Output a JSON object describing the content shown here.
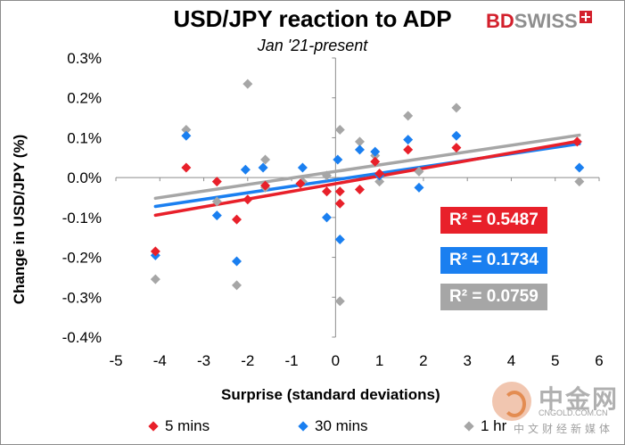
{
  "header": {
    "title": "USD/JPY reaction to ADP",
    "subtitle": "Jan '21-present",
    "logo_part1": "BD",
    "logo_part2": "SWISS"
  },
  "watermark": {
    "main": "中金网",
    "url": "CNGOLD.COM.CN",
    "tagline": "中文财经新媒体"
  },
  "r2_labels": [
    {
      "text": "R² = 0.5487",
      "color": "#e8202a"
    },
    {
      "text": "R² = 0.1734",
      "color": "#1a7ff0"
    },
    {
      "text": "R² = 0.0759",
      "color": "#a6a6a6"
    }
  ],
  "chart_data": {
    "type": "scatter",
    "title": "USD/JPY reaction to ADP",
    "subtitle": "Jan '21-present",
    "xlabel": "Surprise (standard deviations)",
    "ylabel": "Change in USD/JPY  (%)",
    "xlim": [
      -5,
      6
    ],
    "ylim": [
      -0.4,
      0.3
    ],
    "xticks": [
      -5,
      -4,
      -3,
      -2,
      -1,
      0,
      1,
      2,
      3,
      4,
      5,
      6
    ],
    "yticks": [
      0.3,
      0.2,
      0.1,
      0.0,
      -0.1,
      -0.2,
      -0.3,
      -0.4
    ],
    "ytick_labels": [
      "0.3%",
      "0.2%",
      "0.1%",
      "0.0%",
      "-0.1%",
      "-0.2%",
      "-0.3%",
      "-0.4%"
    ],
    "legend_position": "bottom",
    "series": [
      {
        "name": "5 mins",
        "color": "#e8202a",
        "points": [
          [
            -4.1,
            -0.185
          ],
          [
            -3.4,
            0.025
          ],
          [
            -2.7,
            -0.01
          ],
          [
            -2.25,
            -0.105
          ],
          [
            -2.0,
            -0.055
          ],
          [
            -1.6,
            -0.02
          ],
          [
            -0.8,
            -0.015
          ],
          [
            -0.2,
            -0.035
          ],
          [
            0.1,
            -0.065
          ],
          [
            0.1,
            -0.035
          ],
          [
            0.55,
            -0.03
          ],
          [
            0.9,
            0.04
          ],
          [
            1.0,
            0.01
          ],
          [
            1.65,
            0.07
          ],
          [
            2.75,
            0.075
          ],
          [
            5.5,
            0.09
          ]
        ],
        "trendline": {
          "slope": 0.0193,
          "intercept": -0.0153
        },
        "r2": 0.5487
      },
      {
        "name": "30 mins",
        "color": "#1a7ff0",
        "points": [
          [
            -4.1,
            -0.195
          ],
          [
            -3.4,
            0.105
          ],
          [
            -2.7,
            -0.095
          ],
          [
            -2.25,
            -0.21
          ],
          [
            -2.05,
            0.02
          ],
          [
            -1.65,
            0.025
          ],
          [
            -0.75,
            0.025
          ],
          [
            -0.2,
            -0.1
          ],
          [
            0.05,
            0.045
          ],
          [
            0.1,
            -0.155
          ],
          [
            0.55,
            0.07
          ],
          [
            0.9,
            0.065
          ],
          [
            1.0,
            0.005
          ],
          [
            1.65,
            0.095
          ],
          [
            1.9,
            -0.025
          ],
          [
            2.75,
            0.105
          ],
          [
            5.55,
            0.025
          ]
        ],
        "trendline": {
          "slope": 0.0163,
          "intercept": -0.0055
        },
        "r2": 0.1734
      },
      {
        "name": "1 hr",
        "color": "#a6a6a6",
        "points": [
          [
            -4.1,
            -0.255
          ],
          [
            -3.4,
            0.12
          ],
          [
            -2.7,
            -0.06
          ],
          [
            -2.25,
            -0.27
          ],
          [
            -2.0,
            0.235
          ],
          [
            -1.6,
            0.045
          ],
          [
            -1.6,
            -0.025
          ],
          [
            -0.75,
            -0.01
          ],
          [
            -0.2,
            0.005
          ],
          [
            0.1,
            0.12
          ],
          [
            0.1,
            -0.31
          ],
          [
            0.55,
            0.09
          ],
          [
            0.9,
            0.055
          ],
          [
            1.0,
            -0.01
          ],
          [
            1.65,
            0.155
          ],
          [
            1.9,
            0.015
          ],
          [
            2.75,
            0.175
          ],
          [
            5.55,
            -0.01
          ]
        ],
        "trendline": {
          "slope": 0.0164,
          "intercept": 0.0154
        },
        "r2": 0.0759
      }
    ]
  }
}
